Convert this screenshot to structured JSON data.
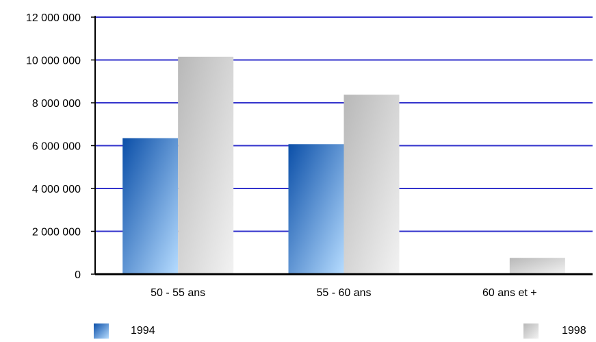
{
  "chart_data": {
    "type": "bar",
    "categories": [
      "50 - 55 ans",
      "55 - 60 ans",
      "60 ans et +"
    ],
    "series": [
      {
        "name": "1994",
        "values": [
          6350000,
          6070000,
          30000
        ]
      },
      {
        "name": "1998",
        "values": [
          10150000,
          8380000,
          760000
        ]
      }
    ],
    "title": "",
    "xlabel": "",
    "ylabel": "",
    "ylim": [
      0,
      12000000
    ],
    "yticks": [
      0,
      2000000,
      4000000,
      6000000,
      8000000,
      10000000,
      12000000
    ],
    "ytick_labels": [
      "0",
      "2 000 000",
      "4 000 000",
      "6 000 000",
      "8 000 000",
      "10 000 000",
      "12 000 000"
    ],
    "grid": true,
    "legend_position": "bottom",
    "colors": {
      "grid": "#3333cc",
      "axis": "#000000",
      "series_1994": "#1a5fb8",
      "series_1998": "#c8c8c8"
    }
  },
  "legend": {
    "label_1994": "1994",
    "label_1998": "1998"
  }
}
